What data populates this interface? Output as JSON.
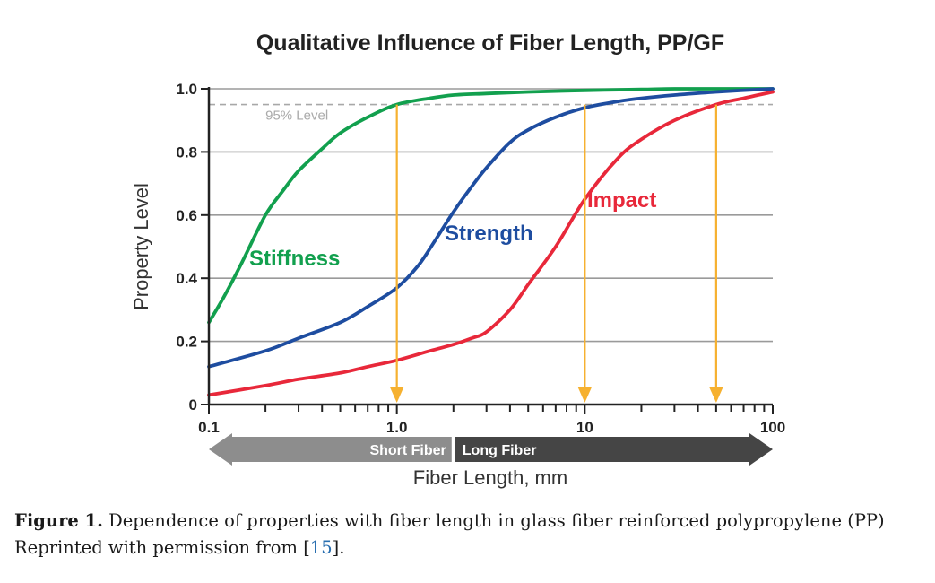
{
  "chart_data": {
    "type": "line",
    "title": "Qualitative Influence of Fiber Length, PP/GF",
    "xlabel": "Fiber Length, mm",
    "ylabel": "Property Level",
    "xscale": "log",
    "xlim": [
      0.1,
      100
    ],
    "ylim": [
      0,
      1.0
    ],
    "x_tick_labels": [
      "0.1",
      "1.0",
      "10",
      "100"
    ],
    "y_tick_labels": [
      "0",
      "0.2",
      "0.4",
      "0.6",
      "0.8",
      "1.0"
    ],
    "grid": "horizontal",
    "reference_line": {
      "label": "95% Level",
      "y": 0.95
    },
    "drop_arrows_x": [
      1.0,
      10,
      50
    ],
    "regions": [
      {
        "label": "Short Fiber",
        "x_range": [
          0.1,
          2
        ]
      },
      {
        "label": "Long Fiber",
        "x_range": [
          2,
          100
        ]
      }
    ],
    "series": [
      {
        "name": "Stiffness",
        "color": "#12a04e",
        "x": [
          0.1,
          0.12,
          0.15,
          0.2,
          0.25,
          0.3,
          0.4,
          0.5,
          0.7,
          1.0,
          1.5,
          2,
          3,
          5,
          10,
          20,
          30,
          50,
          100
        ],
        "y": [
          0.26,
          0.34,
          0.45,
          0.6,
          0.68,
          0.74,
          0.81,
          0.86,
          0.91,
          0.95,
          0.97,
          0.98,
          0.985,
          0.99,
          0.995,
          0.998,
          1.0,
          1.0,
          1.0
        ]
      },
      {
        "name": "Strength",
        "color": "#1e4da0",
        "x": [
          0.1,
          0.2,
          0.3,
          0.5,
          0.7,
          1.0,
          1.3,
          1.6,
          2,
          2.5,
          3,
          4,
          5,
          7,
          10,
          15,
          20,
          30,
          50,
          100
        ],
        "y": [
          0.12,
          0.17,
          0.21,
          0.26,
          0.31,
          0.37,
          0.44,
          0.52,
          0.61,
          0.69,
          0.75,
          0.83,
          0.87,
          0.91,
          0.94,
          0.96,
          0.97,
          0.98,
          0.99,
          1.0
        ]
      },
      {
        "name": "Impact",
        "color": "#e8283a",
        "x": [
          0.1,
          0.2,
          0.3,
          0.5,
          0.7,
          1.0,
          1.5,
          2,
          2.5,
          3,
          4,
          5,
          7,
          10,
          15,
          20,
          30,
          50,
          70,
          100
        ],
        "y": [
          0.03,
          0.06,
          0.08,
          0.1,
          0.12,
          0.14,
          0.17,
          0.19,
          0.21,
          0.23,
          0.3,
          0.38,
          0.5,
          0.65,
          0.78,
          0.84,
          0.9,
          0.95,
          0.97,
          0.99
        ]
      }
    ]
  },
  "caption": {
    "label": "Figure 1.",
    "text": "Dependence of properties with fiber length in glass fiber reinforced polypropylene (PP) Reprinted with permission from [",
    "ref": "15",
    "tail": "]."
  }
}
